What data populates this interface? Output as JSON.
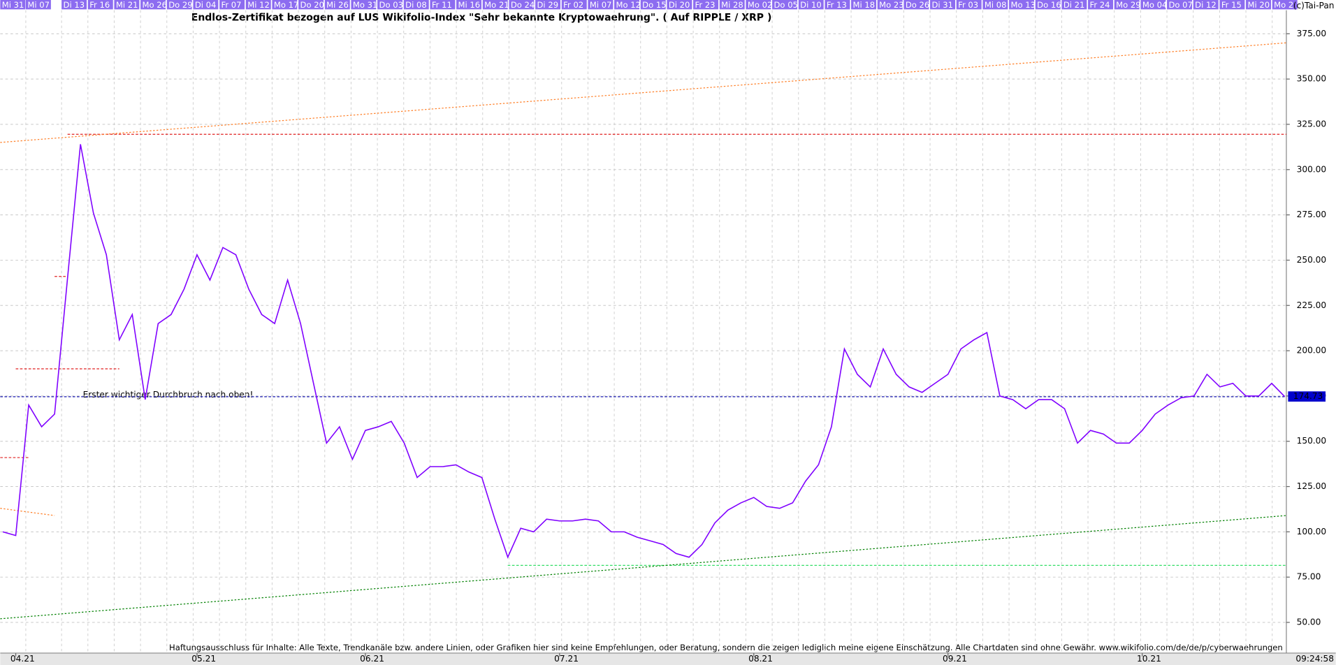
{
  "chart_data": {
    "type": "line",
    "title": "Endlos-Zertifikat bezogen auf LUS Wikifolio-Index \"Sehr bekannte Kryptowaehrung\". ( Auf RIPPLE / XRP )",
    "copyright": "(c)Tai-Pan",
    "timestamp": "09:24:58",
    "footer": "Haftungsausschluss für Inhalte: Alle Texte, Trendkanäle bzw. andere Linien, oder Grafiken hier sind keine Empfehlungen, oder Beratung, sondern die zeigen lediglich meine eigene Einschätzung. Alle Chartdaten sind ohne Gewähr.  www.wikifolio.com/de/de/p/cyberwaehrungen",
    "annotation": {
      "text": "Erster wichtiger Durchbruch nach oben!",
      "color": "#2a9d9d"
    },
    "date_strip": [
      "Mi 31",
      "Mi 07",
      "Di 13",
      "Fr 16",
      "Mi 21",
      "Mo 26",
      "Do 29",
      "Di 04",
      "Fr 07",
      "Mi 12",
      "Mo 17",
      "Do 20",
      "Mi 26",
      "Mo 31",
      "Do 03",
      "Di 08",
      "Fr 11",
      "Mi 16",
      "Mo 21",
      "Do 24",
      "Di 29",
      "Fr 02",
      "Mi 07",
      "Mo 12",
      "Do 15",
      "Di 20",
      "Fr 23",
      "Mi 28",
      "Mo 02",
      "Do 05",
      "Di 10",
      "Fr 13",
      "Mi 18",
      "Mo 23",
      "Do 26",
      "Di 31",
      "Fr 03",
      "Mi 08",
      "Mo 13",
      "Do 16",
      "Di 21",
      "Fr 24",
      "Mo 29",
      "Mo 04",
      "Do 07",
      "Di 12",
      "Fr 15",
      "Mi 20",
      "Mo 2"
    ],
    "categories": [
      null,
      "04.21",
      null,
      null,
      null,
      null,
      null,
      null,
      null,
      null,
      null,
      null,
      null,
      null,
      null,
      "05.21",
      null,
      null,
      null,
      null,
      null,
      null,
      null,
      null,
      null,
      null,
      null,
      null,
      "06.21",
      null,
      null,
      null,
      null,
      null,
      null,
      null,
      null,
      null,
      null,
      null,
      null,
      null,
      null,
      "07.21",
      null,
      null,
      null,
      null,
      null,
      null,
      null,
      null,
      null,
      null,
      null,
      null,
      null,
      null,
      "08.21",
      null,
      null,
      null,
      null,
      null,
      null,
      null,
      null,
      null,
      null,
      null,
      null,
      null,
      null,
      "09.21",
      null,
      null,
      null,
      null,
      null,
      null,
      null,
      null,
      null,
      null,
      null,
      null,
      null,
      null,
      "10.21",
      null,
      null,
      null,
      null,
      null,
      null,
      null,
      null,
      null,
      null,
      null
    ],
    "series": [
      {
        "color": "#7f00ff",
        "values": [
          100,
          98,
          170,
          158,
          165,
          240,
          314,
          276,
          253,
          206,
          220,
          173,
          215,
          220,
          234,
          253,
          239,
          257,
          253,
          234,
          220,
          215,
          239,
          215,
          182,
          149,
          158,
          140,
          156,
          158,
          161,
          149,
          130,
          136,
          136,
          137,
          133,
          130,
          107,
          86,
          102,
          100,
          107,
          106,
          106,
          107,
          106,
          100,
          100,
          97,
          95,
          93,
          88,
          86,
          93,
          105,
          112,
          116,
          119,
          114,
          113,
          116,
          128,
          137,
          158,
          201,
          187,
          180,
          201,
          187,
          180,
          177,
          182,
          187,
          201,
          206,
          210,
          175,
          173,
          168,
          173,
          173,
          168,
          149,
          156,
          154,
          149,
          149,
          156,
          165,
          170,
          174,
          175,
          187,
          180,
          182,
          175,
          175,
          182,
          174.73
        ]
      }
    ],
    "price_tag_color": "#0000cc",
    "levels": [
      {
        "value": 319.5,
        "from": 5,
        "to": 99,
        "color": "#e02020"
      },
      {
        "value": 241,
        "from": 4,
        "to": 5,
        "color": "#e02020"
      },
      {
        "value": 190,
        "from": 1,
        "to": 9,
        "color": "#e02020"
      },
      {
        "value": 141,
        "from": 0,
        "to": 2,
        "color": "#e02020"
      },
      {
        "value": 81.5,
        "from": 39,
        "to": 99,
        "color": "#33dd66"
      },
      {
        "value": 174.6,
        "from": 0,
        "to": 99,
        "color": "#0000aa"
      }
    ],
    "trends": [
      {
        "values": [
          315,
          370
        ],
        "from": 0,
        "to": 99,
        "color": "#ff7f27"
      },
      {
        "values": [
          113,
          109
        ],
        "from": 0,
        "to": 4,
        "color": "#ff7f27"
      },
      {
        "values": [
          52,
          109
        ],
        "from": 0,
        "to": 99,
        "color": "#008000"
      }
    ],
    "ylim": [
      34,
      388
    ],
    "yticks": [
      {
        "value": 50,
        "label": "50.00"
      },
      {
        "value": 75,
        "label": "75.00"
      },
      {
        "value": 100,
        "label": "100.00"
      },
      {
        "value": 125,
        "label": "125.00"
      },
      {
        "value": 150,
        "label": "150.00"
      },
      {
        "value": 175,
        "label": "175.00"
      },
      {
        "value": 200,
        "label": "200.00"
      },
      {
        "value": 225,
        "label": "225.00"
      },
      {
        "value": 250,
        "label": "250.00"
      },
      {
        "value": 275,
        "label": "275.00"
      },
      {
        "value": 300,
        "label": "300.00"
      },
      {
        "value": 325,
        "label": "325.00"
      },
      {
        "value": 350,
        "label": "350.00"
      },
      {
        "value": 375,
        "label": "375.00"
      }
    ],
    "grid": true
  }
}
